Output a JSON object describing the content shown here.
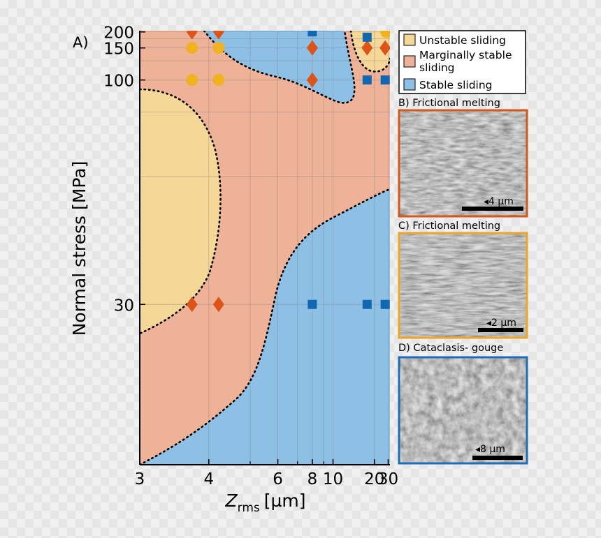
{
  "chart_data": {
    "type": "scatter",
    "panel_label": "A)",
    "xlabel_main": "Z",
    "xlabel_sub": "rms",
    "xlabel_unit": "[µm]",
    "ylabel": "Normal stress [MPa]",
    "x_scale": "reciprocal",
    "y_scale": "reciprocal",
    "xlim": [
      3,
      32
    ],
    "ylim": [
      20,
      205
    ],
    "x_ticks": [
      3,
      4,
      6,
      8,
      10,
      20,
      30
    ],
    "x_minor_ticks": [
      5,
      7,
      9
    ],
    "y_ticks": [
      200,
      150,
      100,
      30
    ],
    "grid": true,
    "legend_position": "top-right",
    "legend": [
      {
        "key": "unstable",
        "label": "Unstable sliding",
        "color": "#f5d898"
      },
      {
        "key": "marginal",
        "label": "Marginally stable sliding",
        "color": "#eeb298"
      },
      {
        "key": "stable",
        "label": "Stable sliding",
        "color": "#8ebfe4"
      }
    ],
    "region_colors": {
      "unstable": "#f5d898",
      "marginal": "#eeb298",
      "stable": "#8ebfe4"
    },
    "boundary_style": "dotted",
    "series": [
      {
        "key": "unstable",
        "marker": "circle",
        "color": "#f0b21e",
        "points": [
          [
            3.7,
            150
          ],
          [
            4.2,
            150
          ],
          [
            3.7,
            100
          ],
          [
            4.2,
            100
          ],
          [
            28,
            200
          ]
        ]
      },
      {
        "key": "marginal",
        "marker": "diamond",
        "color": "#dc5418",
        "points": [
          [
            3.7,
            200
          ],
          [
            4.2,
            200
          ],
          [
            8,
            150
          ],
          [
            17,
            150
          ],
          [
            27,
            150
          ],
          [
            8,
            100
          ],
          [
            3.7,
            30
          ],
          [
            4.2,
            30
          ]
        ]
      },
      {
        "key": "stable",
        "marker": "square",
        "color": "#1268b0",
        "points": [
          [
            8,
            200
          ],
          [
            17,
            180
          ],
          [
            17,
            100
          ],
          [
            27,
            100
          ],
          [
            8,
            30
          ],
          [
            17,
            30
          ],
          [
            27,
            30
          ]
        ]
      }
    ]
  },
  "micrographs": [
    {
      "label": "B) Frictional melting",
      "scale": "4 µm",
      "border": "#d3581c"
    },
    {
      "label": "C) Frictional melting",
      "scale": "2 µm",
      "border": "#eca628"
    },
    {
      "label": "D) Cataclasis- gouge",
      "scale": "8 µm",
      "border": "#1c6eb6"
    }
  ]
}
